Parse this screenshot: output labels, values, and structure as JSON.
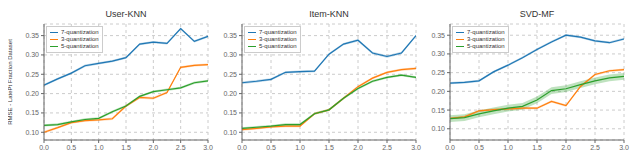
{
  "chart_data": [
    {
      "type": "line",
      "title": "User-KNN",
      "ylabel": "RMSE - LatePt Fraction Dataset",
      "x": [
        0.0,
        0.25,
        0.5,
        0.75,
        1.0,
        1.25,
        1.5,
        1.75,
        2.0,
        2.25,
        2.5,
        2.75,
        3.0
      ],
      "series": [
        {
          "name": "7-quantization",
          "color": "#1f77b4",
          "values": [
            0.222,
            0.238,
            0.253,
            0.272,
            0.278,
            0.284,
            0.293,
            0.328,
            0.333,
            0.33,
            0.368,
            0.335,
            0.348
          ],
          "lower": [
            0.219,
            0.235,
            0.25,
            0.269,
            0.275,
            0.281,
            0.29,
            0.325,
            0.33,
            0.327,
            0.365,
            0.332,
            0.345
          ],
          "upper": [
            0.225,
            0.241,
            0.256,
            0.275,
            0.281,
            0.287,
            0.296,
            0.331,
            0.336,
            0.333,
            0.371,
            0.338,
            0.351
          ]
        },
        {
          "name": "3-quantization",
          "color": "#ff7f0e",
          "values": [
            0.1,
            0.112,
            0.125,
            0.13,
            0.132,
            0.135,
            0.168,
            0.19,
            0.188,
            0.203,
            0.268,
            0.273,
            0.275
          ],
          "lower": [
            0.097,
            0.109,
            0.122,
            0.127,
            0.129,
            0.132,
            0.165,
            0.187,
            0.185,
            0.2,
            0.265,
            0.27,
            0.272
          ],
          "upper": [
            0.103,
            0.115,
            0.128,
            0.133,
            0.135,
            0.138,
            0.171,
            0.193,
            0.191,
            0.206,
            0.271,
            0.276,
            0.278
          ]
        },
        {
          "name": "5-quantization",
          "color": "#2ca02c",
          "values": [
            0.118,
            0.12,
            0.127,
            0.133,
            0.136,
            0.153,
            0.168,
            0.193,
            0.205,
            0.21,
            0.215,
            0.228,
            0.233
          ],
          "lower": [
            0.115,
            0.117,
            0.124,
            0.13,
            0.133,
            0.15,
            0.165,
            0.19,
            0.202,
            0.207,
            0.212,
            0.225,
            0.23
          ],
          "upper": [
            0.121,
            0.123,
            0.13,
            0.136,
            0.139,
            0.156,
            0.171,
            0.196,
            0.208,
            0.213,
            0.218,
            0.231,
            0.236
          ]
        }
      ],
      "xlim": [
        0.0,
        3.0
      ],
      "xticks": [
        {
          "value": 0.0,
          "label": "0.0"
        },
        {
          "value": 0.5,
          "label": "0.5"
        },
        {
          "value": 1.0,
          "label": "1.0"
        },
        {
          "value": 1.5,
          "label": "1.5"
        },
        {
          "value": 2.0,
          "label": "2.0"
        },
        {
          "value": 2.5,
          "label": "2.5"
        },
        {
          "value": 3.0,
          "label": "3.0"
        }
      ],
      "ylim": [
        0.08,
        0.38
      ],
      "yticks": [
        {
          "value": 0.1,
          "label": "0.10"
        },
        {
          "value": 0.15,
          "label": "0.15"
        },
        {
          "value": 0.2,
          "label": "0.20"
        },
        {
          "value": 0.25,
          "label": "0.25"
        },
        {
          "value": 0.3,
          "label": "0.30"
        },
        {
          "value": 0.35,
          "label": "0.35"
        }
      ],
      "grid": true,
      "legend": "upper left"
    },
    {
      "type": "line",
      "title": "Item-KNN",
      "x": [
        0.0,
        0.25,
        0.5,
        0.75,
        1.0,
        1.25,
        1.5,
        1.75,
        2.0,
        2.25,
        2.5,
        2.75,
        3.0
      ],
      "series": [
        {
          "name": "7-quantization",
          "color": "#1f77b4",
          "values": [
            0.228,
            0.232,
            0.237,
            0.255,
            0.257,
            0.258,
            0.302,
            0.328,
            0.338,
            0.305,
            0.296,
            0.305,
            0.35
          ],
          "lower": [
            0.225,
            0.229,
            0.234,
            0.252,
            0.254,
            0.255,
            0.299,
            0.325,
            0.335,
            0.302,
            0.293,
            0.302,
            0.347
          ],
          "upper": [
            0.231,
            0.235,
            0.24,
            0.258,
            0.26,
            0.261,
            0.305,
            0.331,
            0.341,
            0.308,
            0.299,
            0.308,
            0.353
          ]
        },
        {
          "name": "3-quantization",
          "color": "#ff7f0e",
          "values": [
            0.107,
            0.11,
            0.114,
            0.116,
            0.116,
            0.148,
            0.158,
            0.188,
            0.218,
            0.24,
            0.255,
            0.262,
            0.265
          ],
          "lower": [
            0.104,
            0.107,
            0.111,
            0.113,
            0.113,
            0.145,
            0.155,
            0.185,
            0.215,
            0.237,
            0.252,
            0.259,
            0.262
          ],
          "upper": [
            0.11,
            0.113,
            0.117,
            0.119,
            0.119,
            0.151,
            0.161,
            0.191,
            0.221,
            0.243,
            0.258,
            0.265,
            0.268
          ]
        },
        {
          "name": "5-quantization",
          "color": "#2ca02c",
          "values": [
            0.11,
            0.113,
            0.116,
            0.12,
            0.12,
            0.148,
            0.158,
            0.188,
            0.213,
            0.232,
            0.242,
            0.248,
            0.242
          ],
          "lower": [
            0.107,
            0.11,
            0.113,
            0.117,
            0.117,
            0.145,
            0.155,
            0.185,
            0.21,
            0.229,
            0.239,
            0.245,
            0.239
          ],
          "upper": [
            0.113,
            0.116,
            0.119,
            0.123,
            0.123,
            0.151,
            0.161,
            0.191,
            0.216,
            0.235,
            0.245,
            0.251,
            0.245
          ]
        }
      ],
      "xlim": [
        0.0,
        3.0
      ],
      "xticks": [
        {
          "value": 0.0,
          "label": "0.0"
        },
        {
          "value": 0.5,
          "label": "0.5"
        },
        {
          "value": 1.0,
          "label": "1.0"
        },
        {
          "value": 1.5,
          "label": "1.5"
        },
        {
          "value": 2.0,
          "label": "2.0"
        },
        {
          "value": 2.5,
          "label": "2.5"
        },
        {
          "value": 3.0,
          "label": "3.0"
        }
      ],
      "ylim": [
        0.08,
        0.38
      ],
      "yticks": [
        {
          "value": 0.1,
          "label": "0.10"
        },
        {
          "value": 0.15,
          "label": "0.15"
        },
        {
          "value": 0.2,
          "label": "0.20"
        },
        {
          "value": 0.25,
          "label": "0.25"
        },
        {
          "value": 0.3,
          "label": "0.30"
        },
        {
          "value": 0.35,
          "label": "0.35"
        }
      ],
      "grid": true,
      "legend": "upper left"
    },
    {
      "type": "line",
      "title": "SVD-MF",
      "x": [
        0.0,
        0.25,
        0.5,
        0.75,
        1.0,
        1.25,
        1.5,
        1.75,
        2.0,
        2.25,
        2.5,
        2.75,
        3.0
      ],
      "series": [
        {
          "name": "7-quantization",
          "color": "#1f77b4",
          "values": [
            0.222,
            0.224,
            0.228,
            0.252,
            0.27,
            0.29,
            0.312,
            0.332,
            0.35,
            0.345,
            0.335,
            0.33,
            0.34
          ],
          "lower": [
            0.219,
            0.221,
            0.225,
            0.249,
            0.267,
            0.287,
            0.309,
            0.329,
            0.347,
            0.342,
            0.332,
            0.327,
            0.337
          ],
          "upper": [
            0.225,
            0.227,
            0.231,
            0.255,
            0.273,
            0.293,
            0.315,
            0.335,
            0.353,
            0.348,
            0.338,
            0.333,
            0.343
          ]
        },
        {
          "name": "3-quantization",
          "color": "#ff7f0e",
          "values": [
            0.128,
            0.132,
            0.148,
            0.151,
            0.153,
            0.155,
            0.155,
            0.173,
            0.162,
            0.213,
            0.245,
            0.255,
            0.258
          ],
          "lower": [
            0.125,
            0.129,
            0.145,
            0.148,
            0.15,
            0.152,
            0.152,
            0.17,
            0.159,
            0.21,
            0.242,
            0.252,
            0.255
          ],
          "upper": [
            0.131,
            0.135,
            0.151,
            0.154,
            0.156,
            0.158,
            0.158,
            0.176,
            0.165,
            0.216,
            0.248,
            0.258,
            0.261
          ]
        },
        {
          "name": "5-quantization",
          "color": "#2ca02c",
          "values": [
            0.127,
            0.13,
            0.14,
            0.148,
            0.155,
            0.16,
            0.177,
            0.202,
            0.207,
            0.218,
            0.228,
            0.236,
            0.24
          ],
          "lower": [
            0.118,
            0.121,
            0.131,
            0.139,
            0.146,
            0.151,
            0.168,
            0.193,
            0.198,
            0.209,
            0.219,
            0.227,
            0.231
          ],
          "upper": [
            0.136,
            0.139,
            0.149,
            0.157,
            0.164,
            0.169,
            0.186,
            0.211,
            0.216,
            0.227,
            0.237,
            0.245,
            0.249
          ]
        }
      ],
      "xlim": [
        0.0,
        3.0
      ],
      "xticks": [
        {
          "value": 0.0,
          "label": "0.0"
        },
        {
          "value": 0.5,
          "label": "0.5"
        },
        {
          "value": 1.0,
          "label": "1.0"
        },
        {
          "value": 1.5,
          "label": "1.5"
        },
        {
          "value": 2.0,
          "label": "2.0"
        },
        {
          "value": 2.5,
          "label": "2.5"
        },
        {
          "value": 3.0,
          "label": "3.0"
        }
      ],
      "ylim": [
        0.07,
        0.38
      ],
      "yticks": [
        {
          "value": 0.1,
          "label": "0.10"
        },
        {
          "value": 0.15,
          "label": "0.15"
        },
        {
          "value": 0.2,
          "label": "0.20"
        },
        {
          "value": 0.25,
          "label": "0.25"
        },
        {
          "value": 0.3,
          "label": "0.30"
        },
        {
          "value": 0.35,
          "label": "0.35"
        }
      ],
      "grid": true,
      "legend": "upper left"
    }
  ]
}
